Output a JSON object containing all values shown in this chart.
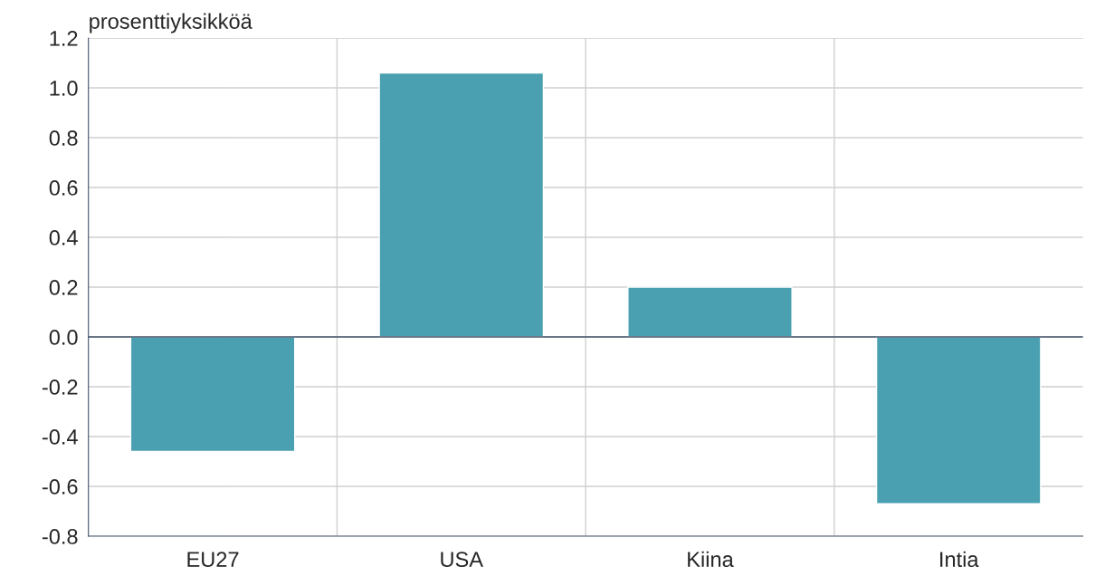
{
  "chart_data": {
    "type": "bar",
    "ylabel": "prosenttiyksikköä",
    "categories": [
      "EU27",
      "USA",
      "Kiina",
      "Intia"
    ],
    "values": [
      -0.46,
      1.06,
      0.2,
      -0.67
    ],
    "color": "#4aa0b0",
    "ylim": [
      -0.8,
      1.2
    ],
    "yticks": [
      {
        "value": -0.8,
        "label": "-0.8"
      },
      {
        "value": -0.6,
        "label": "-0.6"
      },
      {
        "value": -0.4,
        "label": "-0.4"
      },
      {
        "value": -0.2,
        "label": "-0.2"
      },
      {
        "value": 0,
        "label": "0.0"
      },
      {
        "value": 0.2,
        "label": "0.2"
      },
      {
        "value": 0.4,
        "label": "0.4"
      },
      {
        "value": 0.6,
        "label": "0.6"
      },
      {
        "value": 0.8,
        "label": "0.8"
      },
      {
        "value": 1.0,
        "label": "1.0"
      },
      {
        "value": 1.2,
        "label": "1.2"
      }
    ],
    "grid": true
  }
}
